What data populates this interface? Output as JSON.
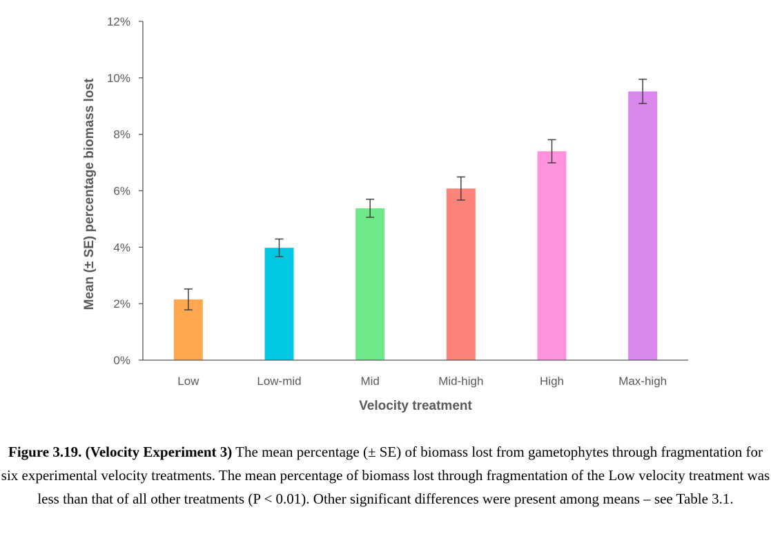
{
  "chart_data": {
    "type": "bar",
    "categories": [
      "Low",
      "Low-mid",
      "Mid",
      "Mid-high",
      "High",
      "Max-high"
    ],
    "values": [
      2.15,
      3.98,
      5.38,
      6.08,
      7.4,
      9.52
    ],
    "errors": [
      0.37,
      0.31,
      0.32,
      0.41,
      0.41,
      0.43
    ],
    "colors": [
      "#ffa84f",
      "#00c8e0",
      "#6ee98a",
      "#fd8279",
      "#fd93dd",
      "#d989ee"
    ],
    "xlabel": "Velocity treatment",
    "ylabel": "Mean (± SE) percentage biomass lost",
    "ylim": [
      0,
      12
    ],
    "yticks": [
      0,
      2,
      4,
      6,
      8,
      10,
      12
    ],
    "ytick_suffix": "%",
    "grid": false,
    "legend": "none"
  },
  "caption": {
    "bold": "Figure 3.19. (Velocity Experiment 3)",
    "text": " The mean percentage (± SE) of biomass lost from gametophytes through fragmentation for six experimental velocity treatments. The mean percentage of biomass lost through fragmentation of the Low velocity treatment was less than that of all other treatments (P < 0.01). Other significant differences were present among means – see Table 3.1."
  }
}
